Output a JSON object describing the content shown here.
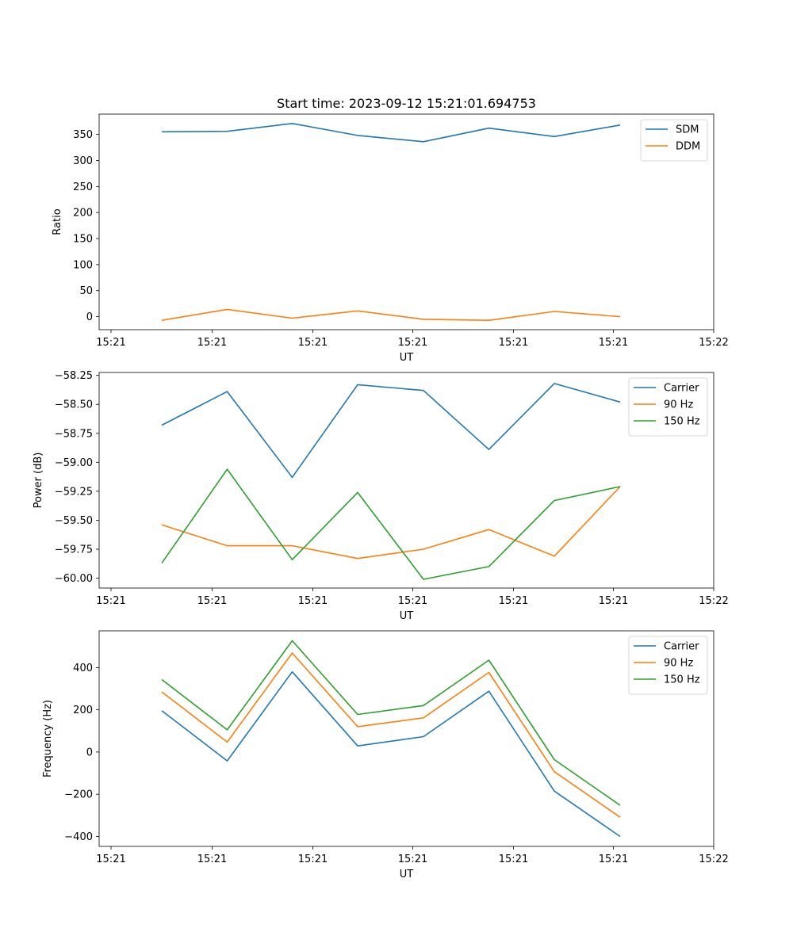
{
  "colors": {
    "blue": "#1f77b4",
    "orange": "#ff7f0e",
    "green": "#2ca02c"
  },
  "chart_data": [
    {
      "type": "line",
      "title": "Start time: 2023-09-12 15:21:01.694753",
      "xlabel": "UT",
      "ylabel": "Ratio",
      "x_tick_labels": [
        "15:21",
        "15:21",
        "15:21",
        "15:21",
        "15:21",
        "15:21",
        "15:22"
      ],
      "y_ticks": [
        0,
        50,
        100,
        150,
        200,
        250,
        300,
        350
      ],
      "y_tick_labels": [
        "0",
        "50",
        "100",
        "150",
        "200",
        "250",
        "300",
        "350"
      ],
      "ylim": [
        -25,
        389
      ],
      "legend_position": "top-right",
      "series": [
        {
          "name": "SDM",
          "color": "#1f77b4",
          "values": [
            355,
            356,
            371,
            348,
            336,
            362,
            346,
            368
          ]
        },
        {
          "name": "DDM",
          "color": "#ff7f0e",
          "values": [
            -7,
            14,
            -3,
            11,
            -5,
            -7,
            10,
            0
          ]
        }
      ]
    },
    {
      "type": "line",
      "title": "",
      "xlabel": "UT",
      "ylabel": "Power (dB)",
      "x_tick_labels": [
        "15:21",
        "15:21",
        "15:21",
        "15:21",
        "15:21",
        "15:21",
        "15:22"
      ],
      "y_ticks": [
        -60.0,
        -59.75,
        -59.5,
        -59.25,
        -59.0,
        -58.75,
        -58.5,
        -58.25
      ],
      "y_tick_labels": [
        "−60.00",
        "−59.75",
        "−59.50",
        "−59.25",
        "−59.00",
        "−58.75",
        "−58.50",
        "−58.25"
      ],
      "ylim": [
        -60.085,
        -58.225
      ],
      "legend_position": "top-right",
      "series": [
        {
          "name": "Carrier",
          "color": "#1f77b4",
          "values": [
            -58.68,
            -58.39,
            -59.13,
            -58.33,
            -58.38,
            -58.89,
            -58.32,
            -58.48
          ]
        },
        {
          "name": "90 Hz",
          "color": "#ff7f0e",
          "values": [
            -59.54,
            -59.72,
            -59.72,
            -59.83,
            -59.75,
            -59.58,
            -59.81,
            -59.21
          ]
        },
        {
          "name": "150 Hz",
          "color": "#2ca02c",
          "values": [
            -59.87,
            -59.06,
            -59.84,
            -59.26,
            -60.01,
            -59.9,
            -59.33,
            -59.21
          ]
        }
      ]
    },
    {
      "type": "line",
      "title": "",
      "xlabel": "UT",
      "ylabel": "Frequency (Hz)",
      "x_tick_labels": [
        "15:21",
        "15:21",
        "15:21",
        "15:21",
        "15:21",
        "15:21",
        "15:22"
      ],
      "y_ticks": [
        -400,
        -200,
        0,
        200,
        400
      ],
      "y_tick_labels": [
        "−400",
        "−200",
        "0",
        "200",
        "400"
      ],
      "ylim": [
        -447,
        574
      ],
      "legend_position": "top-right",
      "series": [
        {
          "name": "Carrier",
          "color": "#1f77b4",
          "values": [
            196,
            -42,
            380,
            29,
            73,
            288,
            -185,
            -400
          ]
        },
        {
          "name": "90 Hz",
          "color": "#ff7f0e",
          "values": [
            285,
            47,
            469,
            120,
            162,
            377,
            -93,
            -309
          ]
        },
        {
          "name": "150 Hz",
          "color": "#2ca02c",
          "values": [
            343,
            105,
            527,
            178,
            220,
            435,
            -36,
            -252
          ]
        }
      ]
    }
  ]
}
